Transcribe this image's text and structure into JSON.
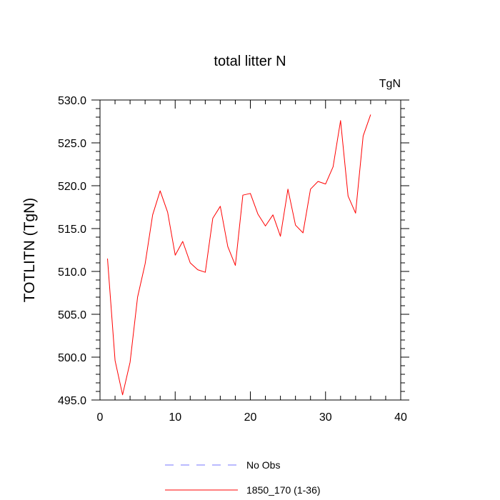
{
  "chart_data": {
    "type": "line",
    "title": "total litter N",
    "units": "TgN",
    "ylabel": "TOTLITN  (TgN)",
    "xlabel": "",
    "xlim": [
      0,
      40
    ],
    "ylim": [
      495,
      530
    ],
    "x_ticks": [
      0,
      10,
      20,
      30,
      40
    ],
    "x_tick_labels": [
      "0",
      "10",
      "20",
      "30",
      "40"
    ],
    "y_ticks": [
      495,
      500,
      505,
      510,
      515,
      520,
      525,
      530
    ],
    "y_tick_labels": [
      "495.0",
      "500.0",
      "505.0",
      "510.0",
      "515.0",
      "520.0",
      "525.0",
      "530.0"
    ],
    "grid": false,
    "legend_position": "bottom",
    "series": [
      {
        "name": "1850_170 (1-36)",
        "color": "#ff0000",
        "x": [
          1,
          2,
          3,
          4,
          5,
          6,
          7,
          8,
          9,
          10,
          11,
          12,
          13,
          14,
          15,
          16,
          17,
          18,
          19,
          20,
          21,
          22,
          23,
          24,
          25,
          26,
          27,
          28,
          29,
          30,
          31,
          32,
          33,
          34,
          35,
          36
        ],
        "y": [
          511.5,
          499.6,
          495.6,
          499.4,
          507.0,
          510.9,
          516.6,
          519.4,
          516.9,
          511.9,
          513.5,
          511.0,
          510.2,
          509.9,
          516.2,
          517.6,
          512.9,
          510.7,
          518.9,
          519.1,
          516.7,
          515.3,
          516.6,
          514.1,
          519.6,
          515.4,
          514.5,
          519.6,
          520.5,
          520.2,
          522.2,
          527.6,
          518.8,
          516.8,
          525.8,
          528.3
        ]
      }
    ],
    "legend": [
      {
        "label": "No Obs",
        "color": "#7777ff",
        "dash": "dashed"
      },
      {
        "label": "1850_170 (1-36)",
        "color": "#ff0000",
        "dash": "solid"
      }
    ]
  }
}
